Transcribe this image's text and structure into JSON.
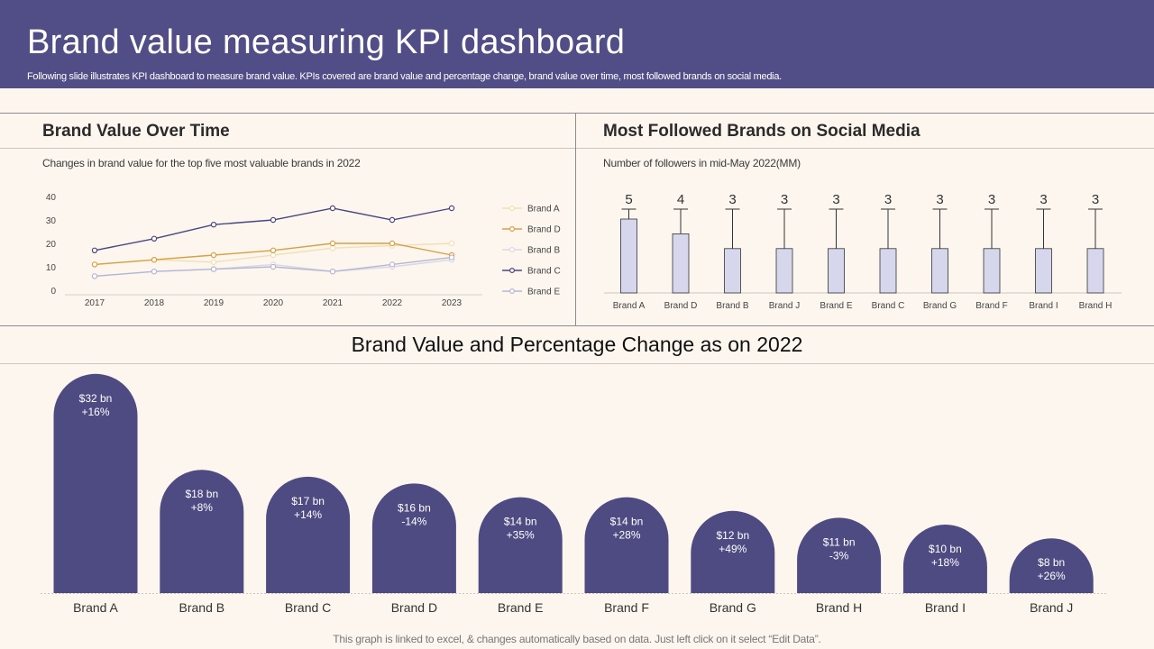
{
  "header": {
    "title": "Brand value measuring KPI dashboard",
    "subtitle": "Following slide illustrates KPI dashboard to measure brand value. KPIs covered are brand value and percentage change, brand value over time, most followed brands on social media."
  },
  "footer": "This graph is linked to excel, & changes automatically based on data. Just left click on it select “Edit Data”.",
  "colors": {
    "header_bg": "#514d86",
    "background": "#fcf6ee",
    "bar_primary": "#4e4a82",
    "bar_light": "#d6d6ec"
  },
  "chart_data": [
    {
      "id": "line",
      "type": "line",
      "title": "Brand Value Over Time",
      "subtitle": "Changes in brand value for the top five  most valuable brands in 2022",
      "x": [
        "2017",
        "2018",
        "2019",
        "2020",
        "2021",
        "2022",
        "2023"
      ],
      "ylim": [
        0,
        40
      ],
      "yticks": [
        0,
        10,
        20,
        30,
        40
      ],
      "legend_position": "right",
      "series": [
        {
          "name": "Brand A",
          "color": "#f3dfb4",
          "values": [
            11,
            13,
            12,
            15,
            18,
            19,
            20
          ]
        },
        {
          "name": "Brand D",
          "color": "#d9a040",
          "values": [
            11,
            13,
            15,
            17,
            20,
            20,
            15
          ]
        },
        {
          "name": "Brand B",
          "color": "#d8d8e2",
          "values": [
            6,
            8,
            9,
            11,
            8,
            10,
            13
          ]
        },
        {
          "name": "Brand C",
          "color": "#4a4780",
          "values": [
            17,
            22,
            28,
            30,
            35,
            30,
            35
          ]
        },
        {
          "name": "Brand E",
          "color": "#b6b6d4",
          "values": [
            6,
            8,
            9,
            10,
            8,
            11,
            14
          ]
        }
      ]
    },
    {
      "id": "followers",
      "type": "bar",
      "title": "Most Followed Brands on Social Media",
      "subtitle": "Number of followers in mid-May 2022(MM)",
      "categories": [
        "Brand A",
        "Brand D",
        "Brand B",
        "Brand J",
        "Brand E",
        "Brand C",
        "Brand G",
        "Brand F",
        "Brand I",
        "Brand H"
      ],
      "values": [
        5,
        4,
        3,
        3,
        3,
        3,
        3,
        3,
        3,
        3
      ],
      "ylim": [
        0,
        6
      ]
    },
    {
      "id": "brand_value",
      "type": "bar",
      "title": "Brand Value and Percentage Change as on 2022",
      "categories": [
        "Brand A",
        "Brand B",
        "Brand C",
        "Brand D",
        "Brand E",
        "Brand F",
        "Brand G",
        "Brand H",
        "Brand I",
        "Brand J"
      ],
      "values": [
        32,
        18,
        17,
        16,
        14,
        14,
        12,
        11,
        10,
        8
      ],
      "value_labels": [
        "$32 bn",
        "$18 bn",
        "$17 bn",
        "$16 bn",
        "$14 bn",
        "$14 bn",
        "$12 bn",
        "$11 bn",
        "$10 bn",
        "$8 bn"
      ],
      "change_labels": [
        "+16%",
        "+8%",
        "+14%",
        "-14%",
        "+35%",
        "+28%",
        "+49%",
        "-3%",
        "+18%",
        "+26%"
      ],
      "unit": "bn"
    }
  ]
}
